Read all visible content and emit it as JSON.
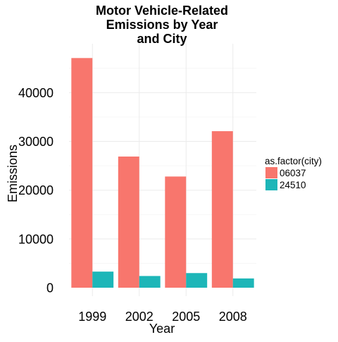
{
  "chart_data": {
    "type": "bar",
    "title_lines": [
      "Motor Vehicle-Related",
      "Emissions by Year",
      "and City"
    ],
    "xlabel": "Year",
    "ylabel": "Emissions",
    "categories": [
      "1999",
      "2002",
      "2005",
      "2008"
    ],
    "yticks": [
      0,
      10000,
      20000,
      30000,
      40000
    ],
    "ylim": [
      0,
      49000
    ],
    "grid": true,
    "legend_title": "as.factor(city)",
    "legend_position": "right",
    "series": [
      {
        "name": "06037",
        "color": "#F8766D",
        "values": [
          47100,
          26900,
          22800,
          32100
        ]
      },
      {
        "name": "24510",
        "color": "#1DB6B8",
        "values": [
          3300,
          2400,
          3000,
          1900
        ]
      }
    ]
  }
}
